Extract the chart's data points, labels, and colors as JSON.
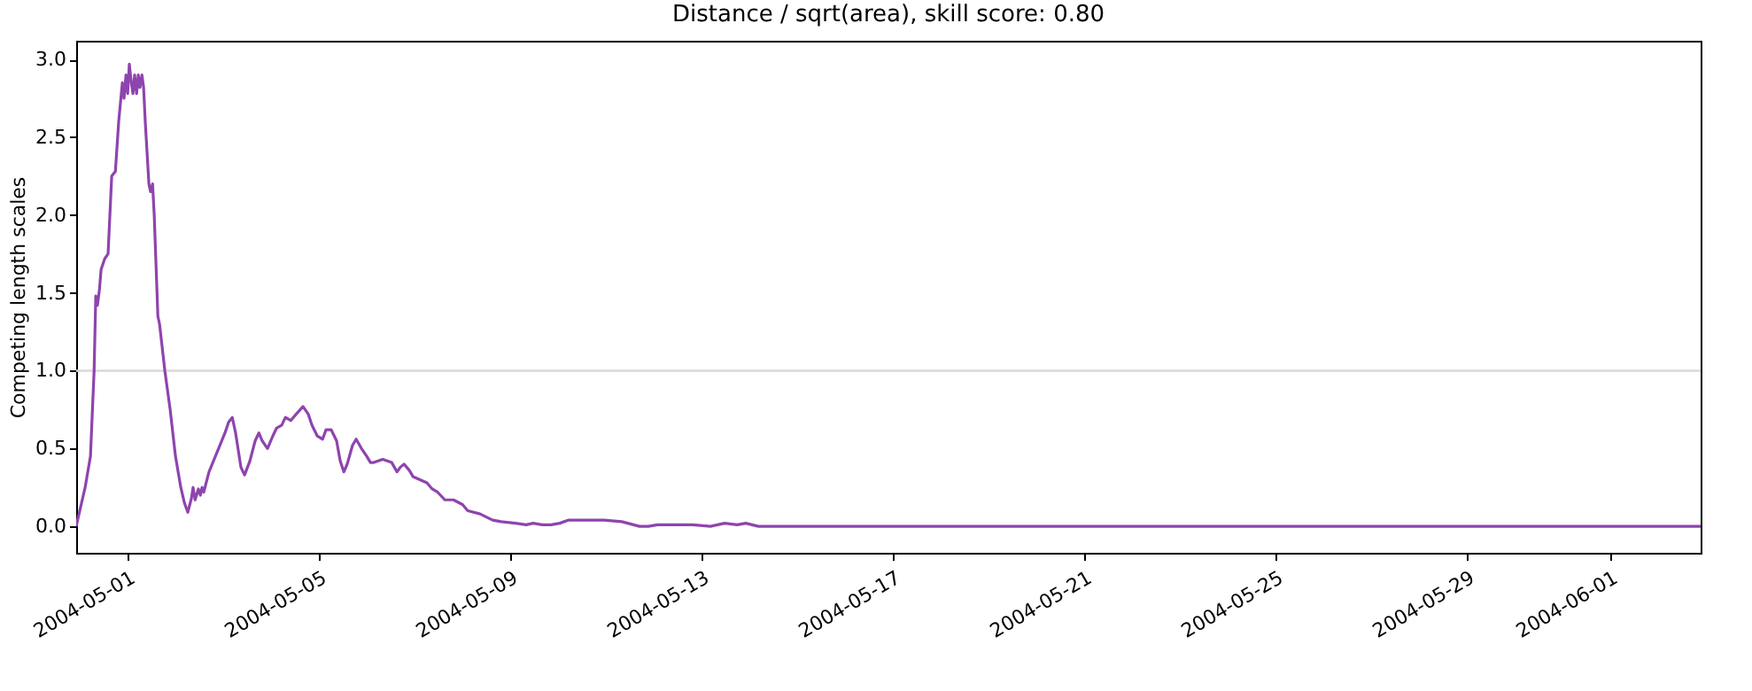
{
  "chart_data": {
    "type": "line",
    "title": "Distance / sqrt(area), skill score: 0.80",
    "ylabel": "Competing length scales",
    "x": [
      "2004-04-29T22:10",
      "2004-04-30T02:40",
      "2004-04-30T05:20",
      "2004-04-30T07:10",
      "2004-04-30T08:00",
      "2004-04-30T08:50",
      "2004-04-30T09:50",
      "2004-04-30T10:40",
      "2004-04-30T12:30",
      "2004-04-30T14:10",
      "2004-04-30T16:00",
      "2004-04-30T17:50",
      "2004-04-30T19:30",
      "2004-04-30T21:20",
      "2004-04-30T22:10",
      "2004-04-30T23:10",
      "2004-05-01T00:00",
      "2004-05-01T00:50",
      "2004-05-01T01:50",
      "2004-05-01T02:40",
      "2004-05-01T03:30",
      "2004-05-01T04:30",
      "2004-05-01T05:20",
      "2004-05-01T06:10",
      "2004-05-01T07:10",
      "2004-05-01T08:00",
      "2004-05-01T08:50",
      "2004-05-01T10:40",
      "2004-05-01T11:30",
      "2004-05-01T12:30",
      "2004-05-01T13:20",
      "2004-05-01T15:10",
      "2004-05-01T16:00",
      "2004-05-01T18:40",
      "2004-05-01T21:20",
      "2004-05-02T00:00",
      "2004-05-02T02:40",
      "2004-05-02T04:30",
      "2004-05-02T06:10",
      "2004-05-02T08:00",
      "2004-05-02T08:50",
      "2004-05-02T09:50",
      "2004-05-02T11:30",
      "2004-05-02T12:30",
      "2004-05-02T13:20",
      "2004-05-02T14:10",
      "2004-05-02T16:50",
      "2004-05-03T00:50",
      "2004-05-03T02:40",
      "2004-05-03T04:30",
      "2004-05-03T06:10",
      "2004-05-03T08:50",
      "2004-05-03T10:40",
      "2004-05-03T13:20",
      "2004-05-03T16:00",
      "2004-05-03T17:50",
      "2004-05-03T19:30",
      "2004-05-03T22:10",
      "2004-05-04T00:50",
      "2004-05-04T02:40",
      "2004-05-04T05:20",
      "2004-05-04T07:10",
      "2004-05-04T09:50",
      "2004-05-04T12:30",
      "2004-05-04T16:00",
      "2004-05-04T18:40",
      "2004-05-04T20:30",
      "2004-05-04T23:10",
      "2004-05-05T01:50",
      "2004-05-05T03:30",
      "2004-05-05T06:10",
      "2004-05-05T08:50",
      "2004-05-05T10:40",
      "2004-05-05T12:30",
      "2004-05-05T14:10",
      "2004-05-05T16:50",
      "2004-05-05T18:40",
      "2004-05-05T21:20",
      "2004-05-06T00:00",
      "2004-05-06T01:50",
      "2004-05-06T03:30",
      "2004-05-06T08:00",
      "2004-05-06T12:30",
      "2004-05-06T15:10",
      "2004-05-06T16:50",
      "2004-05-06T18:40",
      "2004-05-06T21:20",
      "2004-05-06T23:10",
      "2004-05-07T02:40",
      "2004-05-07T06:10",
      "2004-05-07T08:50",
      "2004-05-07T11:30",
      "2004-05-07T15:10",
      "2004-05-07T19:30",
      "2004-05-08T00:00",
      "2004-05-08T02:40",
      "2004-05-08T08:50",
      "2004-05-08T15:10",
      "2004-05-08T19:30",
      "2004-05-09T02:40",
      "2004-05-09T08:00",
      "2004-05-09T11:30",
      "2004-05-09T16:00",
      "2004-05-09T20:30",
      "2004-05-10T00:50",
      "2004-05-10T05:20",
      "2004-05-10T14:10",
      "2004-05-10T23:10",
      "2004-05-11T08:00",
      "2004-05-11T16:50",
      "2004-05-11T21:20",
      "2004-05-12T01:50",
      "2004-05-12T19:30",
      "2004-05-13T04:30",
      "2004-05-13T11:30",
      "2004-05-13T17:50",
      "2004-05-13T22:10",
      "2004-05-14T04:30",
      "2004-06-02T21:20"
    ],
    "series": [
      {
        "color": "#8e44ad",
        "values": [
          0.0,
          0.25,
          0.45,
          1.0,
          1.48,
          1.42,
          1.52,
          1.65,
          1.72,
          1.75,
          2.25,
          2.28,
          2.6,
          2.85,
          2.75,
          2.9,
          2.78,
          2.97,
          2.85,
          2.78,
          2.9,
          2.78,
          2.9,
          2.82,
          2.9,
          2.82,
          2.6,
          2.2,
          2.15,
          2.2,
          2.0,
          1.35,
          1.3,
          1.0,
          0.75,
          0.45,
          0.25,
          0.15,
          0.09,
          0.18,
          0.25,
          0.17,
          0.24,
          0.2,
          0.25,
          0.22,
          0.35,
          0.6,
          0.67,
          0.7,
          0.6,
          0.38,
          0.33,
          0.42,
          0.55,
          0.6,
          0.55,
          0.5,
          0.58,
          0.63,
          0.65,
          0.7,
          0.68,
          0.72,
          0.77,
          0.72,
          0.65,
          0.58,
          0.56,
          0.62,
          0.62,
          0.55,
          0.42,
          0.35,
          0.4,
          0.52,
          0.56,
          0.5,
          0.45,
          0.41,
          0.41,
          0.43,
          0.41,
          0.35,
          0.38,
          0.4,
          0.36,
          0.32,
          0.3,
          0.28,
          0.24,
          0.22,
          0.17,
          0.17,
          0.14,
          0.1,
          0.08,
          0.04,
          0.03,
          0.02,
          0.01,
          0.02,
          0.01,
          0.01,
          0.02,
          0.04,
          0.04,
          0.04,
          0.03,
          0.0,
          0.0,
          0.01,
          0.01,
          0.0,
          0.02,
          0.01,
          0.02,
          0.0,
          0.0
        ]
      }
    ],
    "xlim": [
      "2004-04-29T22:10",
      "2004-06-02T21:20"
    ],
    "xticks": [
      "2004-05-01",
      "2004-05-05",
      "2004-05-09",
      "2004-05-13",
      "2004-05-17",
      "2004-05-21",
      "2004-05-25",
      "2004-05-29",
      "2004-06-01"
    ],
    "ylim": [
      -0.17,
      3.12
    ],
    "yticks": [
      {
        "value": 0,
        "label": "0.0"
      },
      {
        "value": 0.5,
        "label": "0.5"
      },
      {
        "value": 1,
        "label": "1.0"
      },
      {
        "value": 1.5,
        "label": "1.5"
      },
      {
        "value": 2,
        "label": "2.0"
      },
      {
        "value": 2.5,
        "label": "2.5"
      },
      {
        "value": 3,
        "label": "3.0"
      }
    ],
    "ref_lines": [
      {
        "axis": "y",
        "value": 1,
        "color": "#d9d9d9"
      }
    ],
    "line_style": "solid"
  }
}
